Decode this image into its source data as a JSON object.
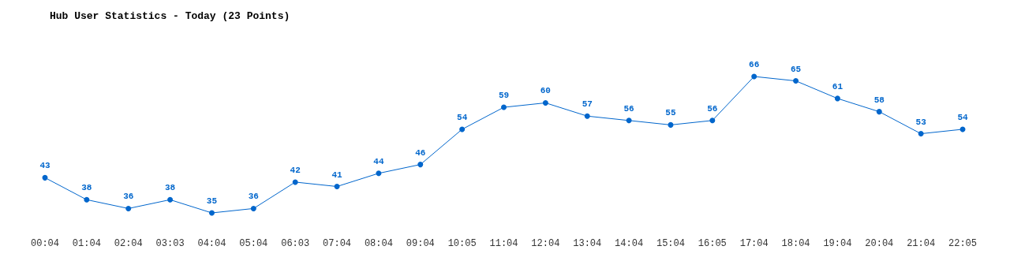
{
  "chart_data": {
    "type": "line",
    "title": "Hub User Statistics - Today (23 Points)",
    "categories": [
      "00:04",
      "01:04",
      "02:04",
      "03:03",
      "04:04",
      "05:04",
      "06:03",
      "07:04",
      "08:04",
      "09:04",
      "10:05",
      "11:04",
      "12:04",
      "13:04",
      "14:04",
      "15:04",
      "16:05",
      "17:04",
      "18:04",
      "19:04",
      "20:04",
      "21:04",
      "22:05"
    ],
    "series": [
      {
        "color": "#0066cc",
        "values": [
          43,
          38,
          36,
          38,
          35,
          36,
          42,
          41,
          44,
          46,
          54,
          59,
          60,
          57,
          56,
          55,
          56,
          66,
          65,
          61,
          58,
          53,
          54
        ]
      }
    ],
    "data_labels": true,
    "marker": "circle",
    "line_style": "solid",
    "tick_labels": "x"
  }
}
